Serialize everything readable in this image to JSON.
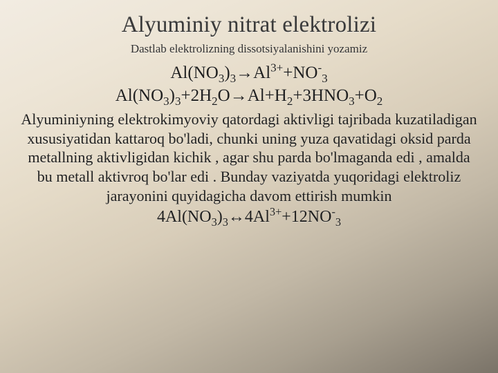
{
  "colors": {
    "bg_gradient_stops": [
      "#f2ece2",
      "#ede5d6",
      "#e5dbc8",
      "#d8cdb9",
      "#c2b8a6",
      "#a89f8f",
      "#8d8578",
      "#7a7368"
    ],
    "title_color": "#3a3a3a",
    "text_color": "#2b2b2b",
    "eq_color": "#202020"
  },
  "typography": {
    "family": "Georgia / Times-like serif",
    "title_size_pt": 25,
    "sub1_size_pt": 13,
    "eq_size_pt": 19,
    "body_size_pt": 17,
    "eq2_size_pt": 18
  },
  "title": "Alyuminiy nitrat elektrolizi",
  "subtitle": "Dastlab elektrolizning dissotsiyalanishini yozamiz",
  "eq1": {
    "lhs": "Al(NO",
    "lhs_sub1": "3",
    "lhs_close": ")",
    "lhs_sub2": "3",
    "arrow": "→",
    "rhs_a": "Al",
    "rhs_a_sup": "3+",
    "rhs_plus": "+NO",
    "rhs_b_sup": "-",
    "rhs_b_sub": "3"
  },
  "eq2": {
    "p1": "Al(NO",
    "s1": "3",
    "p2": ")",
    "s2": "3",
    "p3": "+2H",
    "s3": "2",
    "p4": "O",
    "arrow": "→",
    "p5": "Al+H",
    "s5": "2",
    "p6": "+3HNO",
    "s6": "3",
    "p7": "+O",
    "s7": "2"
  },
  "body": "Alyuminiyning elektrokimyoviy qatordagi aktivligi tajribada kuzatiladigan xususiyatidan kattaroq bo'ladi, chunki uning yuza qavatidagi oksid parda metallning aktivligidan kichik , agar shu parda bo'lmaganda edi , amalda bu metall aktivroq bo'lar edi . Bunday vaziyatda yuqoridagi elektroliz jarayonini quyidagicha davom ettirish mumkin",
  "eq3": {
    "p1": "4Al(NO",
    "s1": "3",
    "p2": ")",
    "s2": "3",
    "arrow": "↔",
    "p3": "4Al",
    "sup3": "3+",
    "p4": "+12NO",
    "sup4": "-",
    "s4": "3"
  }
}
